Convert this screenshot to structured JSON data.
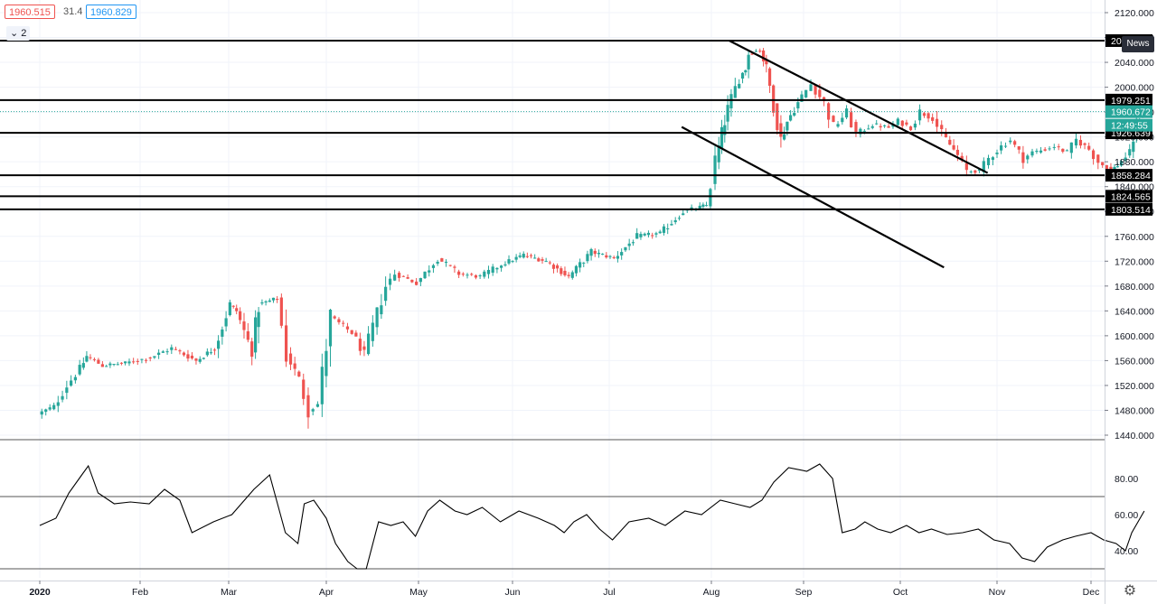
{
  "header": {
    "bid": "1960.515",
    "spread": "31.4",
    "ask": "1960.829",
    "indicator_toggle": "⌄ 2",
    "news_label": "News"
  },
  "colors": {
    "up": "#26a69a",
    "down": "#ef5350",
    "current_price_tag": "#26a69a",
    "level_tag": "#000000"
  },
  "chart_data": {
    "type": "candlestick",
    "price_axis": {
      "min": 1440,
      "max": 2120,
      "ticks": [
        "2120.000",
        "2080.000",
        "2040.000",
        "2000.000",
        "1960.000",
        "1920.000",
        "1880.000",
        "1840.000",
        "1800.000",
        "1760.000",
        "1720.000",
        "1680.000",
        "1640.000",
        "1600.000",
        "1560.000",
        "1520.000",
        "1480.000",
        "1440.000"
      ]
    },
    "x_axis": {
      "labels": [
        "2020",
        "Feb",
        "Mar",
        "Apr",
        "May",
        "Jun",
        "Jul",
        "Aug",
        "Sep",
        "Oct",
        "Nov",
        "Dec"
      ]
    },
    "horizontal_levels": [
      {
        "price": 2075.0,
        "label": "20"
      },
      {
        "price": 1979.251,
        "label": "1979.251"
      },
      {
        "price": 1926.639,
        "label": "1926.639"
      },
      {
        "price": 1858.284,
        "label": "1858.284"
      },
      {
        "price": 1824.565,
        "label": "1824.565"
      },
      {
        "price": 1803.514,
        "label": "1803.514"
      }
    ],
    "current_price": {
      "value": 1960.672,
      "label": "1960.672",
      "countdown": "12:49:55"
    },
    "trendlines": [
      {
        "from": {
          "date": "2020-08-07",
          "price": 2075
        },
        "to": {
          "date": "2020-10-29",
          "price": 1862
        }
      },
      {
        "from": {
          "date": "2020-07-23",
          "price": 1936
        },
        "to": {
          "date": "2020-10-15",
          "price": 1710
        }
      }
    ],
    "close_path": [
      {
        "date": "2020-01-01",
        "price": 1474
      },
      {
        "date": "2020-01-06",
        "price": 1486
      },
      {
        "date": "2020-01-10",
        "price": 1520
      },
      {
        "date": "2020-01-14",
        "price": 1547
      },
      {
        "date": "2020-01-16",
        "price": 1567
      },
      {
        "date": "2020-01-21",
        "price": 1552
      },
      {
        "date": "2020-01-28",
        "price": 1556
      },
      {
        "date": "2020-02-05",
        "price": 1565
      },
      {
        "date": "2020-02-12",
        "price": 1580
      },
      {
        "date": "2020-02-20",
        "price": 1560
      },
      {
        "date": "2020-02-26",
        "price": 1580
      },
      {
        "date": "2020-03-02",
        "price": 1650
      },
      {
        "date": "2020-03-04",
        "price": 1640
      },
      {
        "date": "2020-03-09",
        "price": 1575
      },
      {
        "date": "2020-03-11",
        "price": 1650
      },
      {
        "date": "2020-03-17",
        "price": 1660
      },
      {
        "date": "2020-03-20",
        "price": 1570
      },
      {
        "date": "2020-03-24",
        "price": 1530
      },
      {
        "date": "2020-03-27",
        "price": 1480
      },
      {
        "date": "2020-03-30",
        "price": 1490
      },
      {
        "date": "2020-04-03",
        "price": 1630
      },
      {
        "date": "2020-04-10",
        "price": 1605
      },
      {
        "date": "2020-04-14",
        "price": 1570
      },
      {
        "date": "2020-04-21",
        "price": 1680
      },
      {
        "date": "2020-04-24",
        "price": 1700
      },
      {
        "date": "2020-05-01",
        "price": 1685
      },
      {
        "date": "2020-05-08",
        "price": 1725
      },
      {
        "date": "2020-05-15",
        "price": 1700
      },
      {
        "date": "2020-05-22",
        "price": 1695
      },
      {
        "date": "2020-05-29",
        "price": 1715
      },
      {
        "date": "2020-06-05",
        "price": 1730
      },
      {
        "date": "2020-06-12",
        "price": 1720
      },
      {
        "date": "2020-06-19",
        "price": 1695
      },
      {
        "date": "2020-06-26",
        "price": 1735
      },
      {
        "date": "2020-07-03",
        "price": 1725
      },
      {
        "date": "2020-07-10",
        "price": 1760
      },
      {
        "date": "2020-07-17",
        "price": 1765
      },
      {
        "date": "2020-07-24",
        "price": 1800
      },
      {
        "date": "2020-07-28",
        "price": 1805
      },
      {
        "date": "2020-07-31",
        "price": 1810
      },
      {
        "date": "2020-08-03",
        "price": 1880
      },
      {
        "date": "2020-08-05",
        "price": 1925
      },
      {
        "date": "2020-08-07",
        "price": 1965
      },
      {
        "date": "2020-08-11",
        "price": 2015
      },
      {
        "date": "2020-08-13",
        "price": 2030
      },
      {
        "date": "2020-08-14",
        "price": 2055
      },
      {
        "date": "2020-08-18",
        "price": 2060
      },
      {
        "date": "2020-08-20",
        "price": 2030
      },
      {
        "date": "2020-08-25",
        "price": 1915
      },
      {
        "date": "2020-08-27",
        "price": 1945
      },
      {
        "date": "2020-09-01",
        "price": 1985
      },
      {
        "date": "2020-09-04",
        "price": 2005
      },
      {
        "date": "2020-09-08",
        "price": 1975
      },
      {
        "date": "2020-09-11",
        "price": 1935
      },
      {
        "date": "2020-09-15",
        "price": 1960
      },
      {
        "date": "2020-09-18",
        "price": 1925
      },
      {
        "date": "2020-09-23",
        "price": 1940
      },
      {
        "date": "2020-09-28",
        "price": 1935
      },
      {
        "date": "2020-10-01",
        "price": 1945
      },
      {
        "date": "2020-10-05",
        "price": 1935
      },
      {
        "date": "2020-10-08",
        "price": 1960
      },
      {
        "date": "2020-10-12",
        "price": 1950
      },
      {
        "date": "2020-10-15",
        "price": 1925
      },
      {
        "date": "2020-10-20",
        "price": 1890
      },
      {
        "date": "2020-10-23",
        "price": 1865
      },
      {
        "date": "2020-10-27",
        "price": 1865
      },
      {
        "date": "2020-10-30",
        "price": 1885
      },
      {
        "date": "2020-11-03",
        "price": 1905
      },
      {
        "date": "2020-11-06",
        "price": 1915
      },
      {
        "date": "2020-11-10",
        "price": 1885
      },
      {
        "date": "2020-11-13",
        "price": 1895
      },
      {
        "date": "2020-11-17",
        "price": 1900
      },
      {
        "date": "2020-11-20",
        "price": 1905
      },
      {
        "date": "2020-11-24",
        "price": 1895
      },
      {
        "date": "2020-11-27",
        "price": 1915
      },
      {
        "date": "2020-12-01",
        "price": 1900
      },
      {
        "date": "2020-12-04",
        "price": 1880
      },
      {
        "date": "2020-12-08",
        "price": 1865
      },
      {
        "date": "2020-12-10",
        "price": 1875
      },
      {
        "date": "2020-12-14",
        "price": 1895
      },
      {
        "date": "2020-12-16",
        "price": 1940
      },
      {
        "date": "2020-12-18",
        "price": 1960
      }
    ],
    "indicator": {
      "ticks": [
        "80.00",
        "60.00",
        "40.00"
      ],
      "min": 25,
      "max": 95,
      "levels": [
        70,
        30
      ],
      "path": [
        {
          "date": "2020-01-01",
          "value": 54
        },
        {
          "date": "2020-01-06",
          "value": 58
        },
        {
          "date": "2020-01-10",
          "value": 72
        },
        {
          "date": "2020-01-14",
          "value": 82
        },
        {
          "date": "2020-01-16",
          "value": 87
        },
        {
          "date": "2020-01-19",
          "value": 72
        },
        {
          "date": "2020-01-24",
          "value": 66
        },
        {
          "date": "2020-01-29",
          "value": 67
        },
        {
          "date": "2020-02-04",
          "value": 66
        },
        {
          "date": "2020-02-09",
          "value": 74
        },
        {
          "date": "2020-02-14",
          "value": 68
        },
        {
          "date": "2020-02-18",
          "value": 50
        },
        {
          "date": "2020-02-25",
          "value": 56
        },
        {
          "date": "2020-03-02",
          "value": 60
        },
        {
          "date": "2020-03-09",
          "value": 74
        },
        {
          "date": "2020-03-14",
          "value": 82
        },
        {
          "date": "2020-03-19",
          "value": 50
        },
        {
          "date": "2020-03-23",
          "value": 44
        },
        {
          "date": "2020-03-25",
          "value": 66
        },
        {
          "date": "2020-03-28",
          "value": 68
        },
        {
          "date": "2020-04-01",
          "value": 58
        },
        {
          "date": "2020-04-04",
          "value": 44
        },
        {
          "date": "2020-04-08",
          "value": 34
        },
        {
          "date": "2020-04-11",
          "value": 30
        },
        {
          "date": "2020-04-14",
          "value": 30
        },
        {
          "date": "2020-04-18",
          "value": 56
        },
        {
          "date": "2020-04-22",
          "value": 54
        },
        {
          "date": "2020-04-26",
          "value": 56
        },
        {
          "date": "2020-04-30",
          "value": 48
        },
        {
          "date": "2020-05-04",
          "value": 62
        },
        {
          "date": "2020-05-08",
          "value": 68
        },
        {
          "date": "2020-05-13",
          "value": 62
        },
        {
          "date": "2020-05-17",
          "value": 60
        },
        {
          "date": "2020-05-22",
          "value": 64
        },
        {
          "date": "2020-05-28",
          "value": 56
        },
        {
          "date": "2020-06-03",
          "value": 62
        },
        {
          "date": "2020-06-09",
          "value": 58
        },
        {
          "date": "2020-06-14",
          "value": 54
        },
        {
          "date": "2020-06-17",
          "value": 50
        },
        {
          "date": "2020-06-20",
          "value": 56
        },
        {
          "date": "2020-06-24",
          "value": 60
        },
        {
          "date": "2020-06-28",
          "value": 52
        },
        {
          "date": "2020-07-02",
          "value": 46
        },
        {
          "date": "2020-07-07",
          "value": 56
        },
        {
          "date": "2020-07-13",
          "value": 58
        },
        {
          "date": "2020-07-18",
          "value": 54
        },
        {
          "date": "2020-07-24",
          "value": 62
        },
        {
          "date": "2020-07-29",
          "value": 60
        },
        {
          "date": "2020-08-04",
          "value": 68
        },
        {
          "date": "2020-08-09",
          "value": 66
        },
        {
          "date": "2020-08-14",
          "value": 64
        },
        {
          "date": "2020-08-18",
          "value": 68
        },
        {
          "date": "2020-08-22",
          "value": 78
        },
        {
          "date": "2020-08-27",
          "value": 86
        },
        {
          "date": "2020-09-02",
          "value": 84
        },
        {
          "date": "2020-09-06",
          "value": 88
        },
        {
          "date": "2020-09-10",
          "value": 80
        },
        {
          "date": "2020-09-13",
          "value": 50
        },
        {
          "date": "2020-09-17",
          "value": 52
        },
        {
          "date": "2020-09-20",
          "value": 56
        },
        {
          "date": "2020-09-24",
          "value": 52
        },
        {
          "date": "2020-09-28",
          "value": 50
        },
        {
          "date": "2020-10-03",
          "value": 54
        },
        {
          "date": "2020-10-07",
          "value": 50
        },
        {
          "date": "2020-10-11",
          "value": 52
        },
        {
          "date": "2020-10-16",
          "value": 49
        },
        {
          "date": "2020-10-21",
          "value": 50
        },
        {
          "date": "2020-10-26",
          "value": 52
        },
        {
          "date": "2020-10-31",
          "value": 46
        },
        {
          "date": "2020-11-05",
          "value": 44
        },
        {
          "date": "2020-11-09",
          "value": 36
        },
        {
          "date": "2020-11-13",
          "value": 34
        },
        {
          "date": "2020-11-17",
          "value": 42
        },
        {
          "date": "2020-11-22",
          "value": 46
        },
        {
          "date": "2020-11-26",
          "value": 48
        },
        {
          "date": "2020-12-01",
          "value": 50
        },
        {
          "date": "2020-12-05",
          "value": 46
        },
        {
          "date": "2020-12-09",
          "value": 44
        },
        {
          "date": "2020-12-12",
          "value": 40
        },
        {
          "date": "2020-12-14",
          "value": 50
        },
        {
          "date": "2020-12-16",
          "value": 56
        },
        {
          "date": "2020-12-18",
          "value": 62
        }
      ]
    }
  }
}
